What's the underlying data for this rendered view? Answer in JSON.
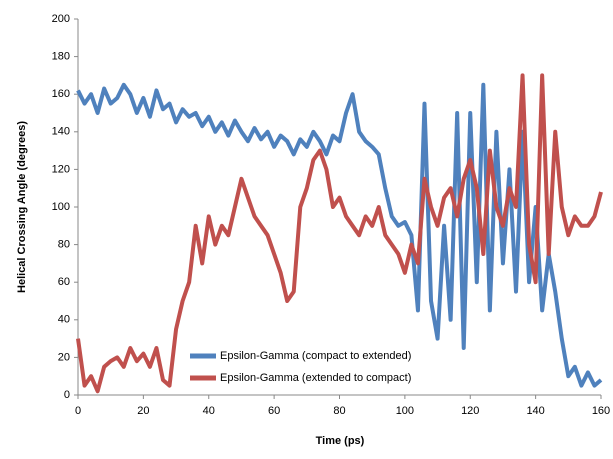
{
  "chart_data": {
    "type": "line",
    "x_label": "Time (ps)",
    "y_label": "Helical Crossing Angle (degrees)",
    "x": [
      0,
      2,
      4,
      6,
      8,
      10,
      12,
      14,
      16,
      18,
      20,
      22,
      24,
      26,
      28,
      30,
      32,
      34,
      36,
      38,
      40,
      42,
      44,
      46,
      48,
      50,
      52,
      54,
      56,
      58,
      60,
      62,
      64,
      66,
      68,
      70,
      72,
      74,
      76,
      78,
      80,
      82,
      84,
      86,
      88,
      90,
      92,
      94,
      96,
      98,
      100,
      102,
      104,
      106,
      108,
      110,
      112,
      114,
      116,
      118,
      120,
      122,
      124,
      126,
      128,
      130,
      132,
      134,
      136,
      138,
      140,
      142,
      144,
      146,
      148,
      150,
      152,
      154,
      156,
      158,
      160
    ],
    "series": [
      {
        "name": "Epsilon-Gamma (compact to extended)",
        "color": "#4f81bd",
        "values": [
          162,
          155,
          160,
          150,
          163,
          155,
          158,
          165,
          160,
          150,
          158,
          148,
          162,
          152,
          155,
          145,
          152,
          148,
          150,
          143,
          148,
          140,
          145,
          138,
          146,
          140,
          135,
          142,
          136,
          140,
          132,
          138,
          135,
          128,
          136,
          132,
          140,
          135,
          128,
          138,
          135,
          150,
          160,
          140,
          135,
          132,
          128,
          110,
          95,
          90,
          92,
          85,
          45,
          155,
          50,
          30,
          90,
          40,
          150,
          25,
          150,
          60,
          165,
          45,
          140,
          70,
          120,
          55,
          140,
          60,
          100,
          45,
          75,
          55,
          30,
          10,
          15,
          5,
          12,
          5,
          8
        ]
      },
      {
        "name": "Epsilon-Gamma (extended to compact)",
        "color": "#c0504d",
        "values": [
          30,
          5,
          10,
          2,
          15,
          18,
          20,
          15,
          25,
          18,
          22,
          15,
          25,
          8,
          5,
          35,
          50,
          60,
          90,
          70,
          95,
          80,
          90,
          85,
          100,
          115,
          105,
          95,
          90,
          85,
          75,
          65,
          50,
          55,
          100,
          110,
          125,
          130,
          120,
          100,
          105,
          95,
          90,
          85,
          95,
          90,
          100,
          85,
          80,
          75,
          65,
          80,
          70,
          115,
          100,
          90,
          105,
          110,
          95,
          115,
          125,
          110,
          75,
          130,
          100,
          90,
          110,
          100,
          170,
          80,
          60,
          170,
          75,
          140,
          100,
          85,
          95,
          90,
          90,
          95,
          108
        ]
      }
    ],
    "xlim": [
      0,
      160
    ],
    "xticks": [
      0,
      20,
      40,
      60,
      80,
      100,
      120,
      140,
      160
    ],
    "ylim": [
      0,
      200
    ],
    "yticks": [
      0,
      20,
      40,
      60,
      80,
      100,
      120,
      140,
      160,
      180,
      200
    ],
    "legend": "bottom-center"
  }
}
